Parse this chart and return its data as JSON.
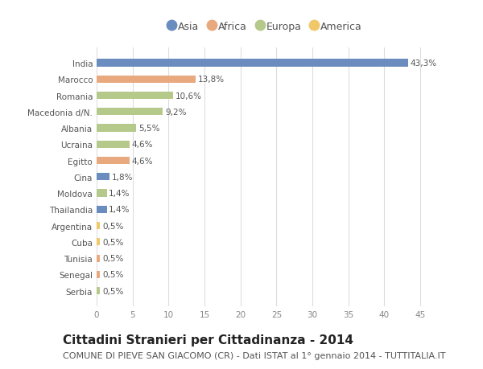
{
  "categories": [
    "India",
    "Marocco",
    "Romania",
    "Macedonia d/N.",
    "Albania",
    "Ucraina",
    "Egitto",
    "Cina",
    "Moldova",
    "Thailandia",
    "Argentina",
    "Cuba",
    "Tunisia",
    "Senegal",
    "Serbia"
  ],
  "values": [
    43.3,
    13.8,
    10.6,
    9.2,
    5.5,
    4.6,
    4.6,
    1.8,
    1.4,
    1.4,
    0.5,
    0.5,
    0.5,
    0.5,
    0.5
  ],
  "labels": [
    "43,3%",
    "13,8%",
    "10,6%",
    "9,2%",
    "5,5%",
    "4,6%",
    "4,6%",
    "1,8%",
    "1,4%",
    "1,4%",
    "0,5%",
    "0,5%",
    "0,5%",
    "0,5%",
    "0,5%"
  ],
  "continents": [
    "Asia",
    "Africa",
    "Europa",
    "Europa",
    "Europa",
    "Europa",
    "Africa",
    "Asia",
    "Europa",
    "Asia",
    "America",
    "America",
    "Africa",
    "Africa",
    "Europa"
  ],
  "continent_colors": {
    "Asia": "#6b8cbf",
    "Africa": "#e8a97e",
    "Europa": "#b5c98a",
    "America": "#f0c86a"
  },
  "legend_order": [
    "Asia",
    "Africa",
    "Europa",
    "America"
  ],
  "title": "Cittadini Stranieri per Cittadinanza - 2014",
  "subtitle": "COMUNE DI PIEVE SAN GIACOMO (CR) - Dati ISTAT al 1° gennaio 2014 - TUTTITALIA.IT",
  "xlim": [
    0,
    47
  ],
  "xticks": [
    0,
    5,
    10,
    15,
    20,
    25,
    30,
    35,
    40,
    45
  ],
  "background_color": "#ffffff",
  "grid_color": "#dddddd",
  "bar_height": 0.45,
  "title_fontsize": 11,
  "subtitle_fontsize": 8,
  "label_fontsize": 7.5,
  "tick_fontsize": 7.5,
  "legend_fontsize": 9
}
